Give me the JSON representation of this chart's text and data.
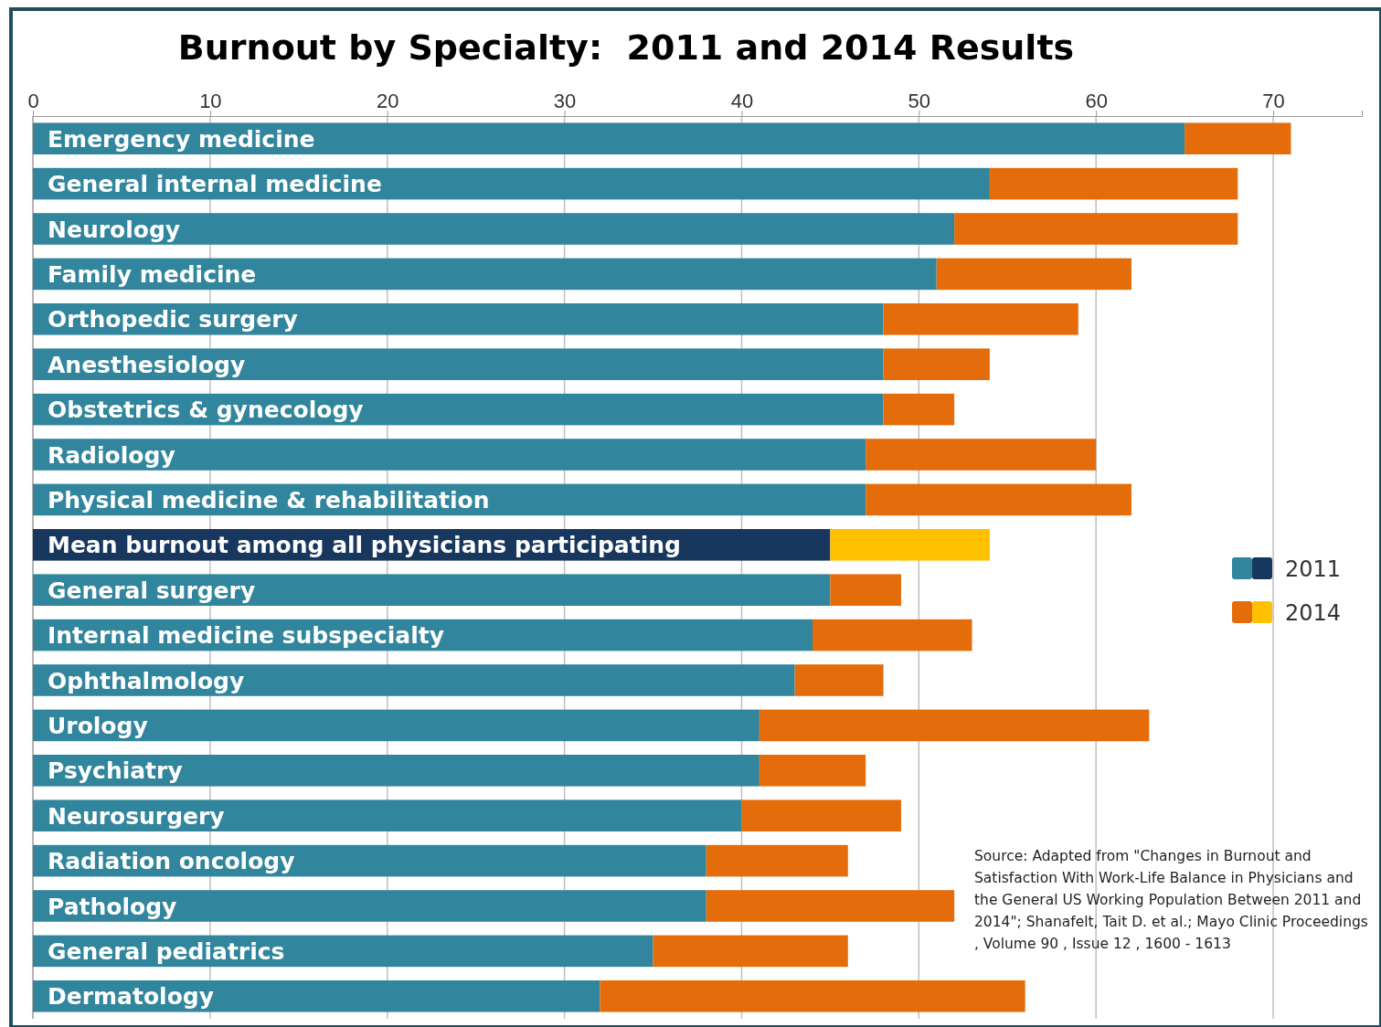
{
  "chart_data": {
    "type": "bar",
    "title": "Burnout by Specialty:  2011 and 2014 Results",
    "orientation": "horizontal",
    "stacked": true,
    "categories": [
      "Emergency medicine",
      "General internal medicine",
      "Neurology",
      "Family medicine",
      "Orthopedic surgery",
      "Anesthesiology",
      "Obstetrics & gynecology",
      "Radiology",
      "Physical medicine & rehabilitation",
      "Mean burnout among all physicians participating",
      "General surgery",
      "Internal medicine subspecialty",
      "Ophthalmology",
      "Urology",
      "Psychiatry",
      "Neurosurgery",
      "Radiation oncology",
      "Pathology",
      "General pediatrics",
      "Dermatology"
    ],
    "series": [
      {
        "name": "2011",
        "color": "#31859c",
        "colors": [
          "#31859c",
          "#31859c",
          "#31859c",
          "#31859c",
          "#31859c",
          "#31859c",
          "#31859c",
          "#31859c",
          "#31859c",
          "#17375e",
          "#31859c",
          "#31859c",
          "#31859c",
          "#31859c",
          "#31859c",
          "#31859c",
          "#31859c",
          "#31859c",
          "#31859c",
          "#31859c"
        ],
        "values": [
          65,
          54,
          52,
          51,
          48,
          48,
          48,
          47,
          47,
          45,
          45,
          44,
          43,
          41,
          41,
          40,
          38,
          38,
          35,
          32
        ]
      },
      {
        "name": "2014",
        "color": "#e46c0a",
        "colors": [
          "#e46c0a",
          "#e46c0a",
          "#e46c0a",
          "#e46c0a",
          "#e46c0a",
          "#e46c0a",
          "#e46c0a",
          "#e46c0a",
          "#e46c0a",
          "#ffc000",
          "#e46c0a",
          "#e46c0a",
          "#e46c0a",
          "#e46c0a",
          "#e46c0a",
          "#e46c0a",
          "#e46c0a",
          "#e46c0a",
          "#e46c0a",
          "#e46c0a"
        ],
        "values": [
          6,
          14,
          16,
          11,
          11,
          6,
          4,
          13,
          15,
          9,
          4,
          9,
          5,
          22,
          6,
          9,
          8,
          14,
          11,
          24
        ]
      }
    ],
    "xlim": [
      0,
      75
    ],
    "xticks": [
      0,
      10,
      20,
      30,
      40,
      50,
      60,
      70
    ],
    "grid": "x",
    "legend": "right",
    "annotations": [
      "Source:  Adapted from \"Changes in Burnout and Satisfaction With Work-Life Balance in Physicians and the General US Working Population Between 2011 and 2014\"; Shanafelt, Tait D. et al.; Mayo Clinic Proceedings , Volume 90 , Issue 12 , 1600 - 1613"
    ]
  }
}
